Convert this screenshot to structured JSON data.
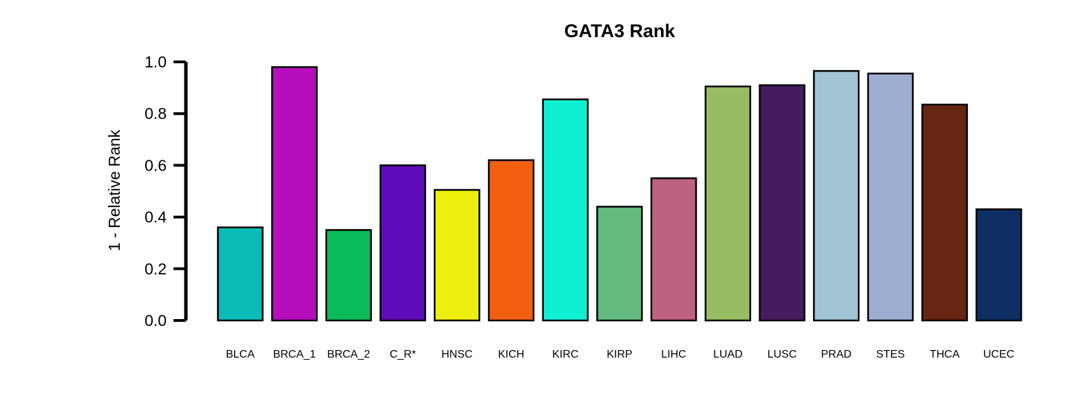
{
  "chart_data": {
    "type": "bar",
    "title": "GATA3 Rank",
    "ylabel": "1 - Relative Rank",
    "xlabel": "",
    "ylim": [
      0,
      1.0
    ],
    "yticks": [
      "0.0",
      "0.2",
      "0.4",
      "0.6",
      "0.8",
      "1.0"
    ],
    "ytick_values": [
      0.0,
      0.2,
      0.4,
      0.6,
      0.8,
      1.0
    ],
    "grid": false,
    "legend": "none",
    "categories": [
      "BLCA",
      "BRCA_1",
      "BRCA_2",
      "C_R*",
      "HNSC",
      "KICH",
      "KIRC",
      "KIRP",
      "LIHC",
      "LUAD",
      "LUSC",
      "PRAD",
      "STES",
      "THCA",
      "UCEC"
    ],
    "values": [
      0.36,
      0.98,
      0.35,
      0.6,
      0.505,
      0.62,
      0.855,
      0.44,
      0.55,
      0.905,
      0.91,
      0.965,
      0.955,
      0.835,
      0.43
    ],
    "colors": [
      "#0BBBB5",
      "#B60DBD",
      "#0BBA58",
      "#5E0BBA",
      "#EEEE0D",
      "#F25F10",
      "#0FF0D2",
      "#62BA7E",
      "#BD6280",
      "#96BD62",
      "#461C5E",
      "#A1C5D4",
      "#9EADD2",
      "#662612",
      "#0D2F64"
    ]
  }
}
